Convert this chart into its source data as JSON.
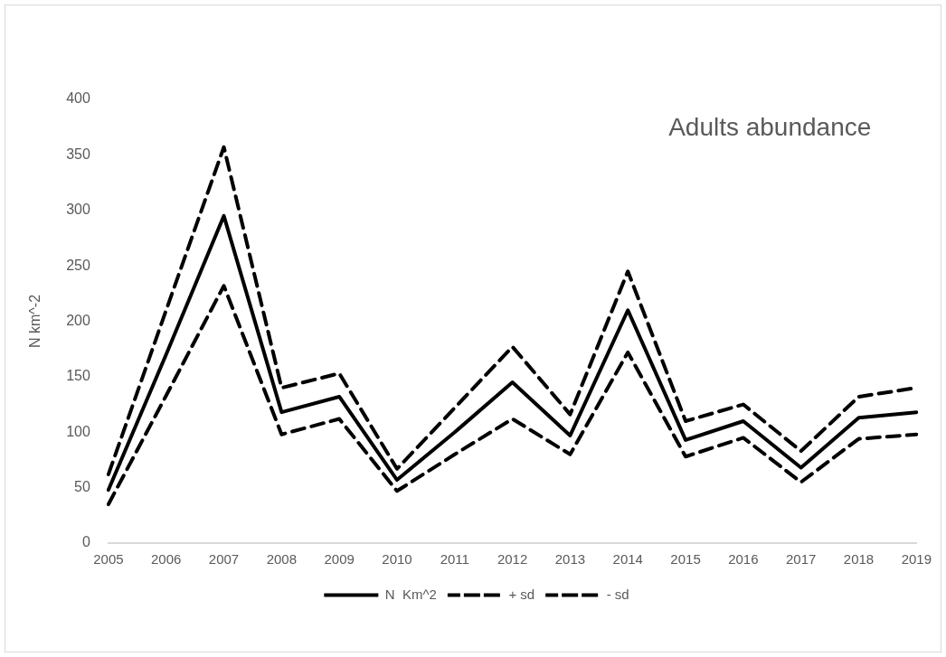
{
  "chart_data": {
    "type": "line",
    "title": "Adults abundance",
    "ylabel": "N km^-2",
    "categories": [
      "2005",
      "2006",
      "2007",
      "2008",
      "2009",
      "2010",
      "2011",
      "2012",
      "2013",
      "2014",
      "2015",
      "2016",
      "2017",
      "2018",
      "2019"
    ],
    "series": [
      {
        "name": "N  Km^2",
        "color": "#000000",
        "line_style": "solid",
        "values": [
          48,
          170,
          295,
          118,
          132,
          57,
          100,
          145,
          97,
          210,
          93,
          110,
          68,
          113,
          118
        ]
      },
      {
        "name": "+ sd",
        "color": "#000000",
        "line_style": "dashed",
        "values": [
          62,
          210,
          357,
          140,
          153,
          67,
          122,
          177,
          116,
          245,
          110,
          125,
          83,
          132,
          140
        ]
      },
      {
        "name": "- sd",
        "color": "#000000",
        "line_style": "dashed",
        "values": [
          35,
          133,
          232,
          98,
          112,
          47,
          80,
          112,
          80,
          172,
          78,
          95,
          55,
          94,
          98
        ]
      }
    ],
    "ylim": [
      0,
      400
    ],
    "yticks": [
      0,
      50,
      100,
      150,
      200,
      250,
      300,
      350,
      400
    ],
    "grid": false,
    "legend": "bottom",
    "marker": "none"
  }
}
